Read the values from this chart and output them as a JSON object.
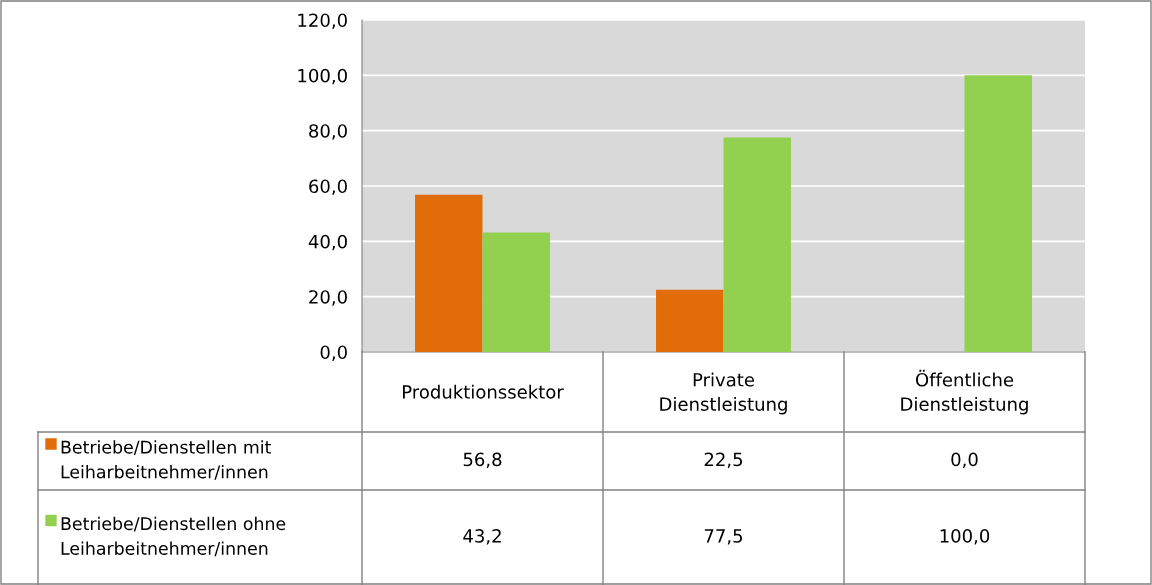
{
  "chart_data": {
    "type": "bar",
    "categories": [
      "Produktionssektor",
      "Private\nDienstleistung",
      "Öffentliche\nDienstleistung"
    ],
    "series": [
      {
        "name": "Betriebe/Dienstellen mit\nLeiharbeitnehmer/innen",
        "color": "#e36c0a",
        "values": [
          56.8,
          22.5,
          0.0
        ],
        "value_labels": [
          "56,8",
          "22,5",
          "0,0"
        ]
      },
      {
        "name": "Betriebe/Dienstellen ohne\nLeiharbeitnehmer/innen",
        "color": "#92d050",
        "values": [
          43.2,
          77.5,
          100.0
        ],
        "value_labels": [
          "43,2",
          "77,5",
          "100,0"
        ]
      }
    ],
    "ylim": [
      0,
      120
    ],
    "yticks": [
      {
        "value": 0,
        "label": "0,0"
      },
      {
        "value": 20,
        "label": "20,0"
      },
      {
        "value": 40,
        "label": "40,0"
      },
      {
        "value": 60,
        "label": "60,0"
      },
      {
        "value": 80,
        "label": "80,0"
      },
      {
        "value": 100,
        "label": "100,0"
      },
      {
        "value": 120,
        "label": "120,0"
      }
    ],
    "grid": "y",
    "legend": "bottom left"
  }
}
